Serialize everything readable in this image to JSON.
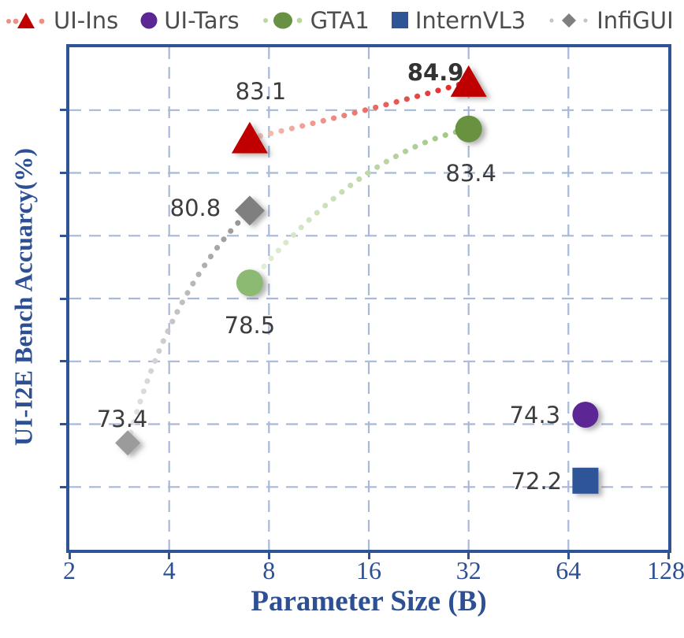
{
  "legend": {
    "items": [
      {
        "label": "UI-Ins",
        "marker": "triangle-dotted",
        "color": "#c00000",
        "dot_color": "#ee8f80"
      },
      {
        "label": "UI-Tars",
        "marker": "circle",
        "color": "#5b2794"
      },
      {
        "label": "GTA1",
        "marker": "circle-dotted",
        "color": "#699144",
        "dot_color": "#b9d8a0"
      },
      {
        "label": "InternVL3",
        "marker": "square",
        "color": "#2f5597"
      },
      {
        "label": "InfiGUI",
        "marker": "diamond-dotted",
        "color": "#7f7f7f",
        "dot_color": "#c6c6c6"
      }
    ]
  },
  "axes": {
    "x_title": "Parameter Size (B)",
    "y_title": "UI-I2E Bench Accuarcy(%)",
    "x_ticks": [
      "2",
      "4",
      "8",
      "16",
      "32",
      "64",
      "128"
    ]
  },
  "chart_data": {
    "type": "scatter",
    "title": "",
    "xlabel": "Parameter Size (B)",
    "ylabel": "UI-I2E Bench Accuarcy(%)",
    "x_scale": "log2",
    "xlim": [
      2,
      128
    ],
    "ylim": [
      70,
      86
    ],
    "grid": true,
    "grid_style": "dashed",
    "grid_color": "#a8b8d8",
    "axis_color": "#2f5496",
    "x_gridlines": [
      4,
      8,
      16,
      32,
      64
    ],
    "y_gridlines": [
      72,
      74,
      76,
      78,
      80,
      82,
      84
    ],
    "legend_position": "top",
    "series": [
      {
        "name": "UI-Ins",
        "marker": "triangle",
        "color": "#c00000",
        "line": "dotted-gradient",
        "line_from": "#f6cbbc",
        "line_to": "#e01f1f",
        "points": [
          {
            "x": 7,
            "y": 83.1,
            "label": "83.1"
          },
          {
            "x": 32,
            "y": 84.9,
            "label": "84.9",
            "label_bold": true
          }
        ]
      },
      {
        "name": "UI-Tars",
        "marker": "circle",
        "color": "#5b2794",
        "points": [
          {
            "x": 72,
            "y": 74.3,
            "label": "74.3"
          }
        ]
      },
      {
        "name": "GTA1",
        "marker": "circle",
        "color": "#67913f",
        "line": "dotted-gradient",
        "line_from": "#e4f0da",
        "line_to": "#9cc47f",
        "points": [
          {
            "x": 7,
            "y": 78.5,
            "label": "78.5",
            "color": "#8cba72"
          },
          {
            "x": 32,
            "y": 83.4,
            "label": "83.4",
            "color": "#67913f"
          }
        ]
      },
      {
        "name": "InternVL3",
        "marker": "square",
        "color": "#2f5597",
        "points": [
          {
            "x": 72,
            "y": 72.2,
            "label": "72.2"
          }
        ]
      },
      {
        "name": "InfiGUI",
        "marker": "diamond",
        "color": "#8c8c8c",
        "line": "dotted-gradient",
        "line_from": "#e5e5e5",
        "line_to": "#8f8f8f",
        "points": [
          {
            "x": 3,
            "y": 73.4,
            "label": "73.4",
            "color": "#9b9b9b"
          },
          {
            "x": 7,
            "y": 80.8,
            "label": "80.8",
            "color": "#7f7f7f"
          }
        ]
      }
    ]
  }
}
